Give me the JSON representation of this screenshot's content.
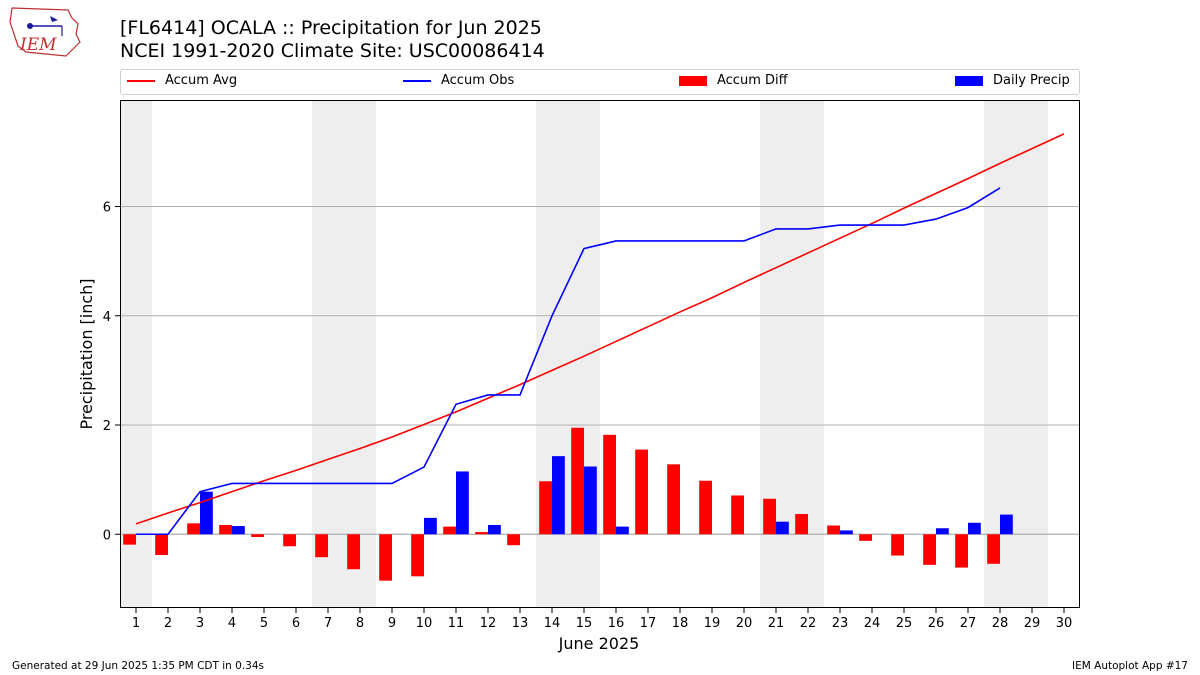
{
  "logo": {
    "text": "IEM"
  },
  "title": "[FL6414] OCALA :: Precipitation for Jun 2025",
  "subtitle": "NCEI 1991-2020 Climate Site: USC00086414",
  "legend": {
    "accum_avg": "Accum Avg",
    "accum_obs": "Accum Obs",
    "accum_diff": "Accum Diff",
    "daily_precip": "Daily Precip"
  },
  "colors": {
    "avg": "#ff0000",
    "obs": "#0000ff",
    "diff": "#ff0000",
    "daily": "#0000ff",
    "weekend_shade": "#eeeeee",
    "grid": "#b0b0b0"
  },
  "chart_data": {
    "type": "bar",
    "title": "[FL6414] OCALA :: Precipitation for Jun 2025",
    "subtitle": "NCEI 1991-2020 Climate Site: USC00086414",
    "xlabel": "June 2025",
    "ylabel": "Precipitation [inch]",
    "ylim": [
      -1.35,
      7.95
    ],
    "yticks": [
      0,
      2,
      4,
      6
    ],
    "days": [
      1,
      2,
      3,
      4,
      5,
      6,
      7,
      8,
      9,
      10,
      11,
      12,
      13,
      14,
      15,
      16,
      17,
      18,
      19,
      20,
      21,
      22,
      23,
      24,
      25,
      26,
      27,
      28,
      29,
      30
    ],
    "weekend_shading": [
      [
        1,
        1
      ],
      [
        7,
        8
      ],
      [
        14,
        15
      ],
      [
        21,
        22
      ],
      [
        28,
        29
      ]
    ],
    "series": [
      {
        "name": "Accum Avg",
        "kind": "line",
        "values": [
          0.19,
          0.39,
          0.58,
          0.78,
          0.98,
          1.17,
          1.37,
          1.57,
          1.78,
          2.01,
          2.24,
          2.49,
          2.74,
          3.0,
          3.26,
          3.53,
          3.8,
          4.07,
          4.33,
          4.61,
          4.88,
          5.15,
          5.42,
          5.69,
          5.97,
          6.24,
          6.51,
          6.79,
          7.06,
          7.33
        ]
      },
      {
        "name": "Accum Obs",
        "kind": "line",
        "values": [
          0.0,
          0.0,
          0.78,
          0.93,
          0.93,
          0.93,
          0.93,
          0.93,
          0.93,
          1.23,
          2.38,
          2.55,
          2.55,
          4.0,
          5.23,
          5.37,
          5.37,
          5.37,
          5.37,
          5.37,
          5.59,
          5.59,
          5.66,
          5.66,
          5.66,
          5.77,
          5.98,
          6.34,
          null,
          null
        ]
      },
      {
        "name": "Accum Diff",
        "kind": "bar",
        "values": [
          -0.19,
          -0.38,
          0.2,
          0.17,
          -0.05,
          -0.22,
          -0.42,
          -0.64,
          -0.85,
          -0.77,
          0.14,
          0.04,
          -0.2,
          0.97,
          1.95,
          1.82,
          1.55,
          1.28,
          0.98,
          0.71,
          0.65,
          0.37,
          0.16,
          -0.12,
          -0.39,
          -0.56,
          -0.61,
          -0.54,
          null,
          null
        ]
      },
      {
        "name": "Daily Precip",
        "kind": "bar",
        "values": [
          0.0,
          0.0,
          0.78,
          0.15,
          0.0,
          0.0,
          0.0,
          0.0,
          0.0,
          0.3,
          1.15,
          0.17,
          0.0,
          1.43,
          1.24,
          0.14,
          0.0,
          0.0,
          0.0,
          0.0,
          0.23,
          0.0,
          0.07,
          0.0,
          0.0,
          0.11,
          0.21,
          0.36,
          null,
          null
        ]
      }
    ]
  },
  "footer": {
    "left": "Generated at 29 Jun 2025 1:35 PM CDT in 0.34s",
    "right": "IEM Autoplot App #17"
  }
}
